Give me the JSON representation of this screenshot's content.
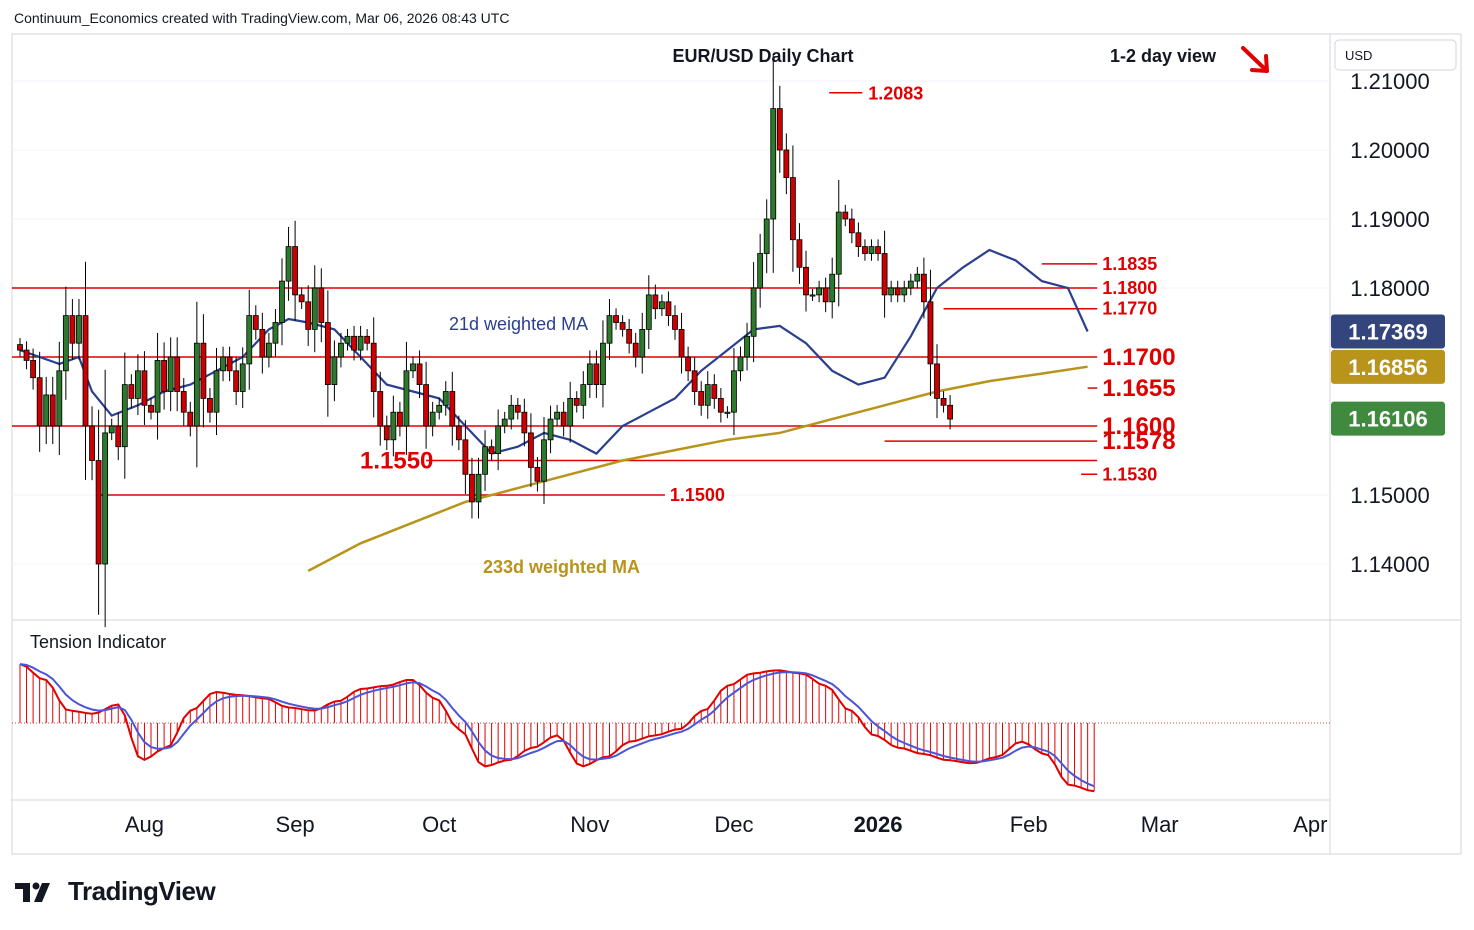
{
  "header": {
    "attribution": "Continuum_Economics created with TradingView.com, Mar 06, 2026 08:43 UTC"
  },
  "footer": {
    "brand": "TradingView"
  },
  "chart_data": {
    "type": "candlestick",
    "title": "EUR/USD Daily Chart",
    "view_label": "1-2 day view",
    "view_direction": "down",
    "currency": "USD",
    "ylim": [
      1.131,
      1.217
    ],
    "y_ticks": [
      "1.21000",
      "1.20000",
      "1.19000",
      "1.18000",
      "1.15000",
      "1.14000"
    ],
    "x_ticks": [
      {
        "label": "Aug",
        "bar": 19,
        "bold": false
      },
      {
        "label": "Sep",
        "bar": 42,
        "bold": false
      },
      {
        "label": "Oct",
        "bar": 64,
        "bold": false
      },
      {
        "label": "Nov",
        "bar": 87,
        "bold": false
      },
      {
        "label": "Dec",
        "bar": 109,
        "bold": false
      },
      {
        "label": "2026",
        "bar": 131,
        "bold": true
      },
      {
        "label": "Feb",
        "bar": 154,
        "bold": false
      },
      {
        "label": "Mar",
        "bar": 174,
        "bold": false
      },
      {
        "label": "Apr",
        "bar": 197,
        "bold": false
      }
    ],
    "closes": [
      1.171,
      1.1695,
      1.167,
      1.16,
      1.1645,
      1.16,
      1.168,
      1.176,
      1.172,
      1.176,
      1.16,
      1.155,
      1.14,
      1.159,
      1.16,
      1.157,
      1.166,
      1.164,
      1.168,
      1.163,
      1.162,
      1.1695,
      1.165,
      1.17,
      1.165,
      1.162,
      1.16,
      1.172,
      1.164,
      1.162,
      1.168,
      1.17,
      1.168,
      1.165,
      1.169,
      1.176,
      1.174,
      1.17,
      1.172,
      1.175,
      1.181,
      1.186,
      1.179,
      1.178,
      1.174,
      1.18,
      1.175,
      1.166,
      1.17,
      1.172,
      1.173,
      1.171,
      1.173,
      1.172,
      1.165,
      1.16,
      1.158,
      1.162,
      1.16,
      1.168,
      1.169,
      1.166,
      1.16,
      1.162,
      1.163,
      1.165,
      1.16,
      1.158,
      1.153,
      1.149,
      1.153,
      1.157,
      1.156,
      1.16,
      1.161,
      1.163,
      1.162,
      1.159,
      1.154,
      1.152,
      1.158,
      1.161,
      1.162,
      1.16,
      1.164,
      1.163,
      1.166,
      1.169,
      1.166,
      1.172,
      1.176,
      1.175,
      1.174,
      1.172,
      1.17,
      1.174,
      1.179,
      1.177,
      1.178,
      1.176,
      1.174,
      1.17,
      1.168,
      1.165,
      1.163,
      1.166,
      1.164,
      1.162,
      1.162,
      1.168,
      1.17,
      1.173,
      1.18,
      1.185,
      1.19,
      1.206,
      1.2,
      1.196,
      1.187,
      1.183,
      1.179,
      1.179,
      1.18,
      1.178,
      1.182,
      1.191,
      1.19,
      1.188,
      1.186,
      1.185,
      1.186,
      1.185,
      1.179,
      1.18,
      1.179,
      1.18,
      1.181,
      1.182,
      1.178,
      1.169,
      1.164,
      1.163,
      1.161
    ],
    "ma21_weighted": {
      "label": "21d weighted MA",
      "color": "#2a3f8f",
      "last_value": "1.17369",
      "points": [
        [
          0,
          1.171
        ],
        [
          3,
          1.17
        ],
        [
          6,
          1.169
        ],
        [
          9,
          1.17
        ],
        [
          11,
          1.165
        ],
        [
          14,
          1.1615
        ],
        [
          18,
          1.163
        ],
        [
          22,
          1.165
        ],
        [
          26,
          1.166
        ],
        [
          30,
          1.168
        ],
        [
          34,
          1.17
        ],
        [
          38,
          1.174
        ],
        [
          41,
          1.1755
        ],
        [
          44,
          1.175
        ],
        [
          48,
          1.174
        ],
        [
          52,
          1.17
        ],
        [
          56,
          1.166
        ],
        [
          60,
          1.165
        ],
        [
          64,
          1.164
        ],
        [
          68,
          1.16
        ],
        [
          72,
          1.156
        ],
        [
          76,
          1.157
        ],
        [
          80,
          1.159
        ],
        [
          84,
          1.158
        ],
        [
          88,
          1.156
        ],
        [
          92,
          1.16
        ],
        [
          96,
          1.162
        ],
        [
          100,
          1.164
        ],
        [
          104,
          1.168
        ],
        [
          108,
          1.171
        ],
        [
          112,
          1.174
        ],
        [
          116,
          1.1745
        ],
        [
          120,
          1.172
        ],
        [
          124,
          1.168
        ],
        [
          128,
          1.166
        ],
        [
          132,
          1.167
        ],
        [
          136,
          1.173
        ],
        [
          140,
          1.18
        ],
        [
          144,
          1.183
        ],
        [
          148,
          1.1855
        ],
        [
          152,
          1.184
        ],
        [
          156,
          1.181
        ],
        [
          160,
          1.18
        ],
        [
          163,
          1.1737
        ]
      ]
    },
    "ma233_weighted": {
      "label": "233d weighted MA",
      "color": "#b8941a",
      "last_value": "1.16856",
      "points": [
        [
          44,
          1.139
        ],
        [
          52,
          1.143
        ],
        [
          60,
          1.146
        ],
        [
          68,
          1.149
        ],
        [
          76,
          1.151
        ],
        [
          84,
          1.153
        ],
        [
          92,
          1.155
        ],
        [
          100,
          1.1565
        ],
        [
          108,
          1.158
        ],
        [
          116,
          1.159
        ],
        [
          124,
          1.161
        ],
        [
          132,
          1.163
        ],
        [
          140,
          1.165
        ],
        [
          148,
          1.1665
        ],
        [
          156,
          1.1676
        ],
        [
          163,
          1.1686
        ]
      ]
    },
    "last_price": "1.16106",
    "peak_label": {
      "label": "1.2083",
      "value": 1.2083,
      "bar": 124
    },
    "levels": [
      {
        "label": "1.1835",
        "value": 1.1835,
        "from": 156,
        "to": 164,
        "size": "small"
      },
      {
        "label": "1.1800",
        "value": 1.18,
        "from": 0,
        "to": 164,
        "size": "small"
      },
      {
        "label": "1.1770",
        "value": 1.177,
        "from": 141,
        "to": 164,
        "size": "small"
      },
      {
        "label": "1.1700",
        "value": 1.17,
        "from": 0,
        "to": 164,
        "size": "large"
      },
      {
        "label": "1.1655",
        "value": 1.1655,
        "from": 163,
        "to": 164,
        "size": "large"
      },
      {
        "label": "1.1600",
        "value": 1.16,
        "from": 0,
        "to": 164,
        "size": "large"
      },
      {
        "label": "1.1578",
        "value": 1.1578,
        "from": 132,
        "to": 164,
        "size": "large"
      },
      {
        "label": "1.1550",
        "value": 1.155,
        "from": 62,
        "to": 164,
        "size": "large"
      },
      {
        "label": "1.1530",
        "value": 1.153,
        "from": 162,
        "to": 164,
        "size": "small"
      },
      {
        "label": "1.1500",
        "value": 1.15,
        "from": 12,
        "to": 98,
        "size": "small"
      }
    ],
    "tension_indicator": {
      "title": "Tension Indicator",
      "values": [
        0.95,
        0.7,
        0.2,
        0.15,
        0.3,
        -0.6,
        -0.4,
        0.2,
        0.5,
        0.45,
        0.4,
        0.25,
        0.2,
        0.35,
        0.55,
        0.6,
        0.7,
        0.4,
        -0.1,
        -0.7,
        -0.6,
        -0.4,
        -0.2,
        -0.7,
        -0.55,
        -0.3,
        -0.2,
        -0.1,
        0.2,
        0.6,
        0.8,
        0.85,
        0.8,
        0.6,
        0.2,
        -0.2,
        -0.4,
        -0.5,
        -0.6,
        -0.65,
        -0.55,
        -0.3,
        -0.5,
        -1.0,
        -1.1
      ]
    }
  }
}
